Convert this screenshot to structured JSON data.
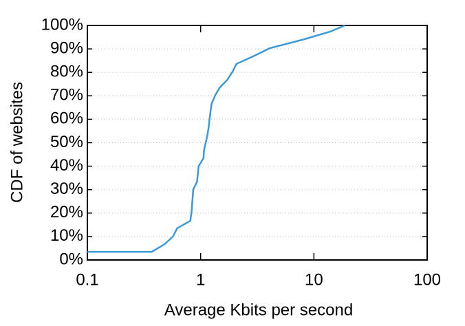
{
  "chart_data": {
    "type": "line",
    "xlabel": "Average Kbits per second",
    "ylabel": "CDF of websites",
    "xscale": "log",
    "xlim": [
      0.1,
      100
    ],
    "xticks": [
      0.1,
      1,
      10,
      100
    ],
    "ylim": [
      0,
      100
    ],
    "yticks": [
      {
        "value": 0,
        "label": "0%"
      },
      {
        "value": 10,
        "label": "10%"
      },
      {
        "value": 20,
        "label": "20%"
      },
      {
        "value": 30,
        "label": "30%"
      },
      {
        "value": 40,
        "label": "40%"
      },
      {
        "value": 50,
        "label": "50%"
      },
      {
        "value": 60,
        "label": "60%"
      },
      {
        "value": 70,
        "label": "70%"
      },
      {
        "value": 80,
        "label": "80%"
      },
      {
        "value": 90,
        "label": "90%"
      },
      {
        "value": 100,
        "label": "100%"
      }
    ],
    "grid": true,
    "series": [
      {
        "color": "#3a9ad9",
        "x": [
          0.1,
          0.37,
          0.48,
          0.57,
          0.62,
          0.81,
          0.83,
          0.86,
          0.93,
          0.96,
          1.06,
          1.07,
          1.15,
          1.18,
          1.2,
          1.25,
          1.35,
          1.48,
          1.72,
          1.93,
          2.07,
          2.96,
          4.08,
          8.2,
          14,
          18.7
        ],
        "values": [
          3.5,
          3.5,
          6.7,
          10,
          13.5,
          16.7,
          20,
          30,
          33.4,
          40,
          43.4,
          46.6,
          53.4,
          57,
          60.4,
          66.6,
          70.4,
          73.6,
          76.8,
          80.6,
          83.6,
          87,
          90.3,
          94.1,
          97.4,
          100
        ]
      }
    ]
  }
}
